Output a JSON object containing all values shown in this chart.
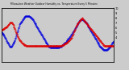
{
  "title": "Milwaukee Weather Outdoor Humidity vs. Temperature Every 5 Minutes",
  "bg_color": "#cccccc",
  "plot_bg": "#cccccc",
  "humidity_color": "#0000dd",
  "temp_color": "#dd0000",
  "marker_size": 0.8,
  "right_ytick_labels": [
    "4.",
    "5.",
    "6.",
    "7.",
    "8.",
    "9.",
    "10"
  ],
  "right_yticks": [
    40,
    50,
    60,
    70,
    80,
    90,
    100
  ],
  "humidity_ylim": [
    28,
    108
  ],
  "temp_ylim_min": -10,
  "temp_ylim_max": 90,
  "n_points": 288,
  "humidity_y": [
    72,
    72,
    71,
    70,
    70,
    69,
    68,
    67,
    66,
    65,
    64,
    63,
    62,
    60,
    59,
    58,
    57,
    56,
    55,
    54,
    53,
    52,
    51,
    50,
    50,
    50,
    51,
    52,
    53,
    54,
    55,
    56,
    57,
    58,
    59,
    60,
    62,
    64,
    66,
    68,
    70,
    72,
    74,
    76,
    78,
    80,
    82,
    84,
    85,
    86,
    87,
    88,
    88,
    89,
    90,
    91,
    92,
    93,
    94,
    94,
    95,
    95,
    96,
    96,
    97,
    97,
    97,
    97,
    97,
    97,
    96,
    96,
    96,
    95,
    95,
    95,
    94,
    94,
    93,
    93,
    92,
    91,
    90,
    89,
    88,
    87,
    86,
    85,
    84,
    83,
    82,
    81,
    80,
    79,
    78,
    77,
    76,
    75,
    74,
    73,
    72,
    71,
    70,
    69,
    68,
    67,
    66,
    65,
    64,
    63,
    62,
    61,
    60,
    59,
    58,
    57,
    56,
    55,
    55,
    54,
    53,
    52,
    51,
    51,
    50,
    50,
    49,
    49,
    49,
    49,
    49,
    49,
    49,
    49,
    49,
    49,
    49,
    49,
    49,
    49,
    49,
    49,
    49,
    49,
    49,
    49,
    49,
    49,
    49,
    49,
    50,
    50,
    50,
    51,
    51,
    52,
    52,
    53,
    53,
    54,
    54,
    55,
    55,
    56,
    56,
    57,
    58,
    58,
    59,
    60,
    60,
    61,
    62,
    63,
    63,
    64,
    65,
    65,
    66,
    67,
    68,
    69,
    70,
    71,
    72,
    73,
    74,
    75,
    76,
    77,
    78,
    79,
    80,
    81,
    82,
    83,
    84,
    85,
    86,
    87,
    88,
    89,
    89,
    90,
    90,
    91,
    91,
    92,
    92,
    91,
    91,
    90,
    90,
    89,
    89,
    88,
    88,
    87,
    87,
    86,
    85,
    84,
    83,
    82,
    81,
    80,
    79,
    78,
    77,
    76,
    75,
    74,
    73,
    72,
    71,
    70,
    69,
    68,
    67,
    66,
    65,
    64,
    63,
    62,
    61,
    60,
    59,
    58,
    57,
    56,
    55,
    54,
    53,
    52,
    51,
    50,
    50,
    49,
    49,
    48,
    48,
    47,
    47,
    46,
    46,
    46,
    46,
    46,
    46,
    46,
    46,
    46,
    46,
    47,
    47,
    48,
    48,
    49,
    49,
    50,
    50,
    51,
    52,
    53,
    54,
    55,
    56,
    57,
    58,
    59
  ],
  "temp_y": [
    55,
    55,
    56,
    56,
    57,
    57,
    58,
    58,
    59,
    59,
    60,
    60,
    61,
    61,
    62,
    63,
    64,
    65,
    66,
    67,
    68,
    69,
    70,
    70,
    71,
    71,
    71,
    70,
    69,
    68,
    67,
    65,
    63,
    61,
    59,
    57,
    55,
    53,
    51,
    49,
    47,
    45,
    43,
    41,
    39,
    37,
    36,
    35,
    34,
    33,
    32,
    31,
    30,
    29,
    28,
    27,
    27,
    26,
    26,
    25,
    25,
    24,
    24,
    24,
    23,
    23,
    23,
    22,
    22,
    22,
    22,
    22,
    22,
    22,
    22,
    22,
    22,
    22,
    22,
    22,
    22,
    22,
    22,
    22,
    22,
    22,
    22,
    22,
    22,
    22,
    22,
    22,
    22,
    22,
    22,
    22,
    22,
    22,
    22,
    22,
    22,
    22,
    22,
    22,
    22,
    22,
    22,
    22,
    22,
    22,
    22,
    22,
    22,
    22,
    22,
    22,
    22,
    22,
    22,
    22,
    22,
    22,
    22,
    22,
    22,
    22,
    22,
    22,
    22,
    22,
    22,
    22,
    22,
    22,
    22,
    22,
    22,
    22,
    22,
    22,
    22,
    22,
    22,
    22,
    22,
    22,
    22,
    22,
    22,
    22,
    22,
    22,
    23,
    23,
    23,
    23,
    24,
    24,
    24,
    25,
    25,
    26,
    26,
    27,
    27,
    28,
    28,
    29,
    29,
    30,
    30,
    31,
    32,
    32,
    33,
    34,
    35,
    36,
    37,
    38,
    39,
    40,
    42,
    44,
    46,
    48,
    50,
    52,
    54,
    56,
    58,
    60,
    62,
    64,
    66,
    67,
    68,
    69,
    70,
    71,
    72,
    73,
    74,
    75,
    76,
    77,
    78,
    79,
    80,
    79,
    78,
    77,
    76,
    75,
    74,
    73,
    72,
    71,
    70,
    69,
    68,
    67,
    66,
    65,
    64,
    63,
    62,
    61,
    60,
    59,
    58,
    57,
    56,
    55,
    54,
    53,
    52,
    51,
    50,
    49,
    48,
    47,
    46,
    45,
    44,
    43,
    42,
    41,
    40,
    39,
    38,
    37,
    36,
    35,
    34,
    33,
    32,
    31,
    30,
    29,
    28,
    27,
    26,
    25,
    24,
    23,
    22,
    22,
    22,
    22,
    22,
    22,
    22,
    22,
    22,
    22,
    22,
    22,
    22,
    22,
    22,
    22,
    22,
    22,
    22,
    22,
    22,
    22,
    22,
    22
  ]
}
